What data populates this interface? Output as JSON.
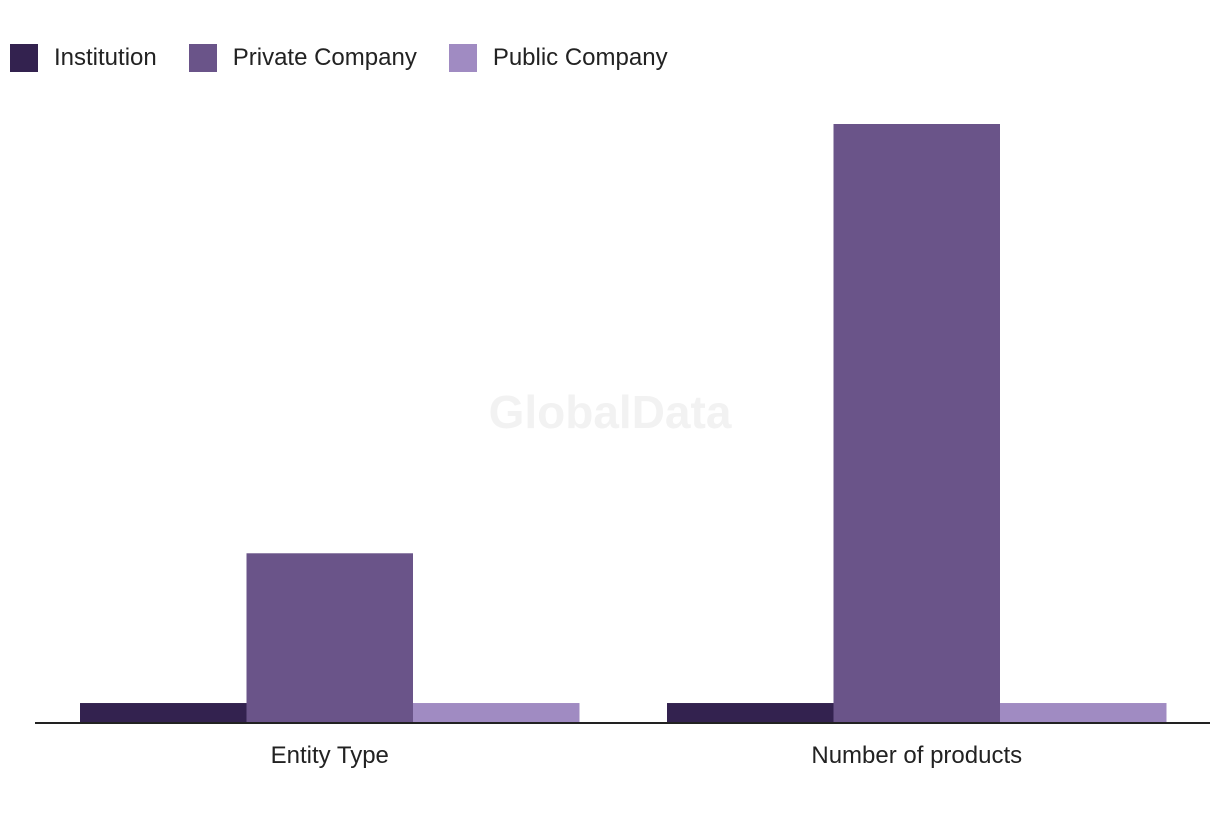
{
  "watermark": "GlobalData",
  "chart_data": {
    "type": "bar",
    "categories": [
      "Entity Type",
      "Number of products"
    ],
    "series": [
      {
        "name": "Institution",
        "color": "#33224f",
        "values": [
          1,
          1
        ]
      },
      {
        "name": "Private Company",
        "color": "#6a5489",
        "values": [
          8.5,
          30
        ]
      },
      {
        "name": "Public Company",
        "color": "#a08bc2",
        "values": [
          1,
          1
        ]
      }
    ],
    "ylim": [
      0,
      30
    ],
    "grid": false,
    "legend": "top-left"
  }
}
